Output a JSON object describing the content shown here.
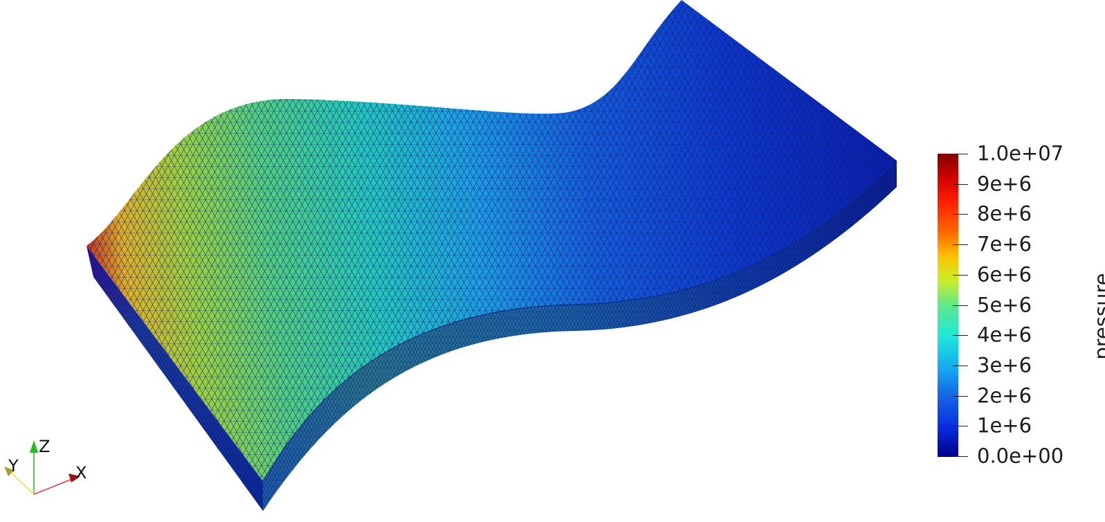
{
  "colorbar": {
    "title": "pressure",
    "labels": [
      "1.0e+07",
      "9e+6",
      "8e+6",
      "7e+6",
      "6e+6",
      "5e+6",
      "4e+6",
      "3e+6",
      "2e+6",
      "1e+6",
      "0.0e+00"
    ],
    "range": [
      0,
      10000000
    ],
    "colormap": "jet"
  },
  "orientation_axes": {
    "x_label": "X",
    "y_label": "Y",
    "z_label": "Z",
    "x_color": "#b01010",
    "y_color": "#d8d820",
    "z_color": "#20c020"
  },
  "mesh": {
    "edge_color": "#0a1a80",
    "background": "#ffffff"
  }
}
